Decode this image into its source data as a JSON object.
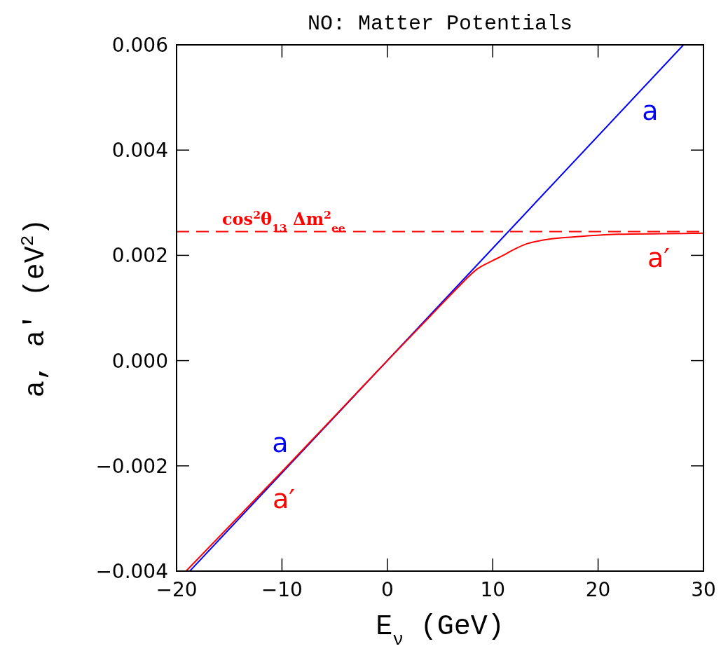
{
  "chart_data": {
    "type": "line",
    "title": "NO: Matter Potentials",
    "xlabel": "E$_{ν}$ (GeV)",
    "ylabel": "a, a′ (eV$^{2}$)",
    "xlim": [
      -20,
      30
    ],
    "xticks": [
      {
        "value": -20,
        "label": "−20"
      },
      {
        "value": -10,
        "label": "−10"
      },
      0,
      10,
      20,
      30
    ],
    "ylim": [
      -0.004,
      0.006
    ],
    "yticks": [
      {
        "value": -0.004,
        "label": "−0.004"
      },
      {
        "value": -0.002,
        "label": "−0.002"
      },
      {
        "value": 0,
        "label": "0.000"
      },
      {
        "value": 0.002,
        "label": "0.002"
      },
      {
        "value": 0.004,
        "label": "0.004"
      },
      {
        "value": 0.006,
        "label": "0.006"
      }
    ],
    "grid": false,
    "line_style": "solid",
    "series": [
      {
        "name": "a",
        "color": "#0000ff",
        "x": [
          -18.75,
          0,
          28.1
        ],
        "values": [
          -0.004,
          0,
          0.006
        ]
      },
      {
        "name": "a′",
        "color": "#ff0000",
        "x": [
          -19.1,
          -10,
          0,
          4,
          6.5,
          8.6,
          10,
          10.9,
          12,
          13.1,
          14.5,
          16.4,
          19,
          22,
          26,
          30
        ],
        "values": [
          -0.004,
          -0.00211,
          0,
          0.00083,
          0.00135,
          0.00175,
          0.0019,
          0.00199,
          0.00211,
          0.00221,
          0.00228,
          0.00233,
          0.00237,
          0.0024,
          0.00241,
          0.00242
        ]
      }
    ],
    "ref_lines": [
      {
        "axis": "y",
        "value": 0.00245,
        "label": "cos$^{2}$θ$_{13}$ Δm$^{2}$$_{ee}$",
        "color": "#ff0000",
        "line_style": "dashed"
      }
    ]
  }
}
